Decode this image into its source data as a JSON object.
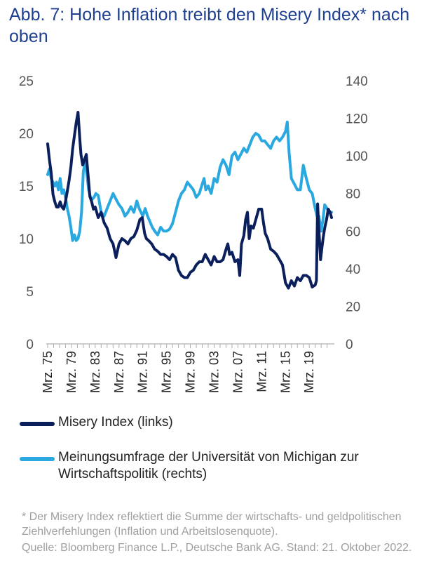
{
  "title": "Abb. 7: Hohe Inflation treibt den Misery Index* nach oben",
  "footnote": "* Der Misery Index reflektiert die Summe der wirtschafts- und geldpolitischen Ziehlverfehlungen (Inflation und Arbeitslosenquote).",
  "source": "Quelle: Bloomberg Finance L.P., Deutsche Bank AG. Stand: 21. Oktober 2022.",
  "colors": {
    "misery": "#0a1f5c",
    "michigan": "#2aa8e0"
  },
  "chart_data": {
    "type": "line",
    "title": "Abb. 7: Hohe Inflation treibt den Misery Index* nach oben",
    "xlim": [
      1975.0,
      2022.75
    ],
    "ylim_left": [
      0,
      25
    ],
    "ylim_right": [
      0,
      140
    ],
    "yticks_left": [
      "0",
      "5",
      "10",
      "15",
      "20",
      "25"
    ],
    "yticks_right": [
      "0",
      "20",
      "40",
      "60",
      "80",
      "100",
      "120",
      "140"
    ],
    "xticks": [
      {
        "x": 1975,
        "label": "Mrz. 75"
      },
      {
        "x": 1979,
        "label": "Mrz. 79"
      },
      {
        "x": 1983,
        "label": "Mrz. 83"
      },
      {
        "x": 1987,
        "label": "Mrz. 87"
      },
      {
        "x": 1991,
        "label": "Mrz. 91"
      },
      {
        "x": 1995,
        "label": "Mrz. 95"
      },
      {
        "x": 1999,
        "label": "Mrz. 99"
      },
      {
        "x": 2003,
        "label": "Mrz. 03"
      },
      {
        "x": 2007,
        "label": "Mrz. 07"
      },
      {
        "x": 2011,
        "label": "Mrz. 11"
      },
      {
        "x": 2015,
        "label": "Mrz. 15"
      },
      {
        "x": 2019,
        "label": "Mrz. 19"
      }
    ],
    "legend_position": "bottom",
    "grid": false,
    "series": [
      {
        "name": "Misery Index  (links)",
        "axis": "left",
        "x": [
          1975.0,
          1975.3,
          1975.6,
          1975.9,
          1976.2,
          1976.5,
          1976.8,
          1977.1,
          1977.4,
          1977.7,
          1978.0,
          1978.3,
          1978.6,
          1978.9,
          1979.2,
          1979.5,
          1979.8,
          1980.1,
          1980.4,
          1980.6,
          1980.9,
          1981.2,
          1981.5,
          1981.8,
          1982.1,
          1982.4,
          1982.7,
          1983.0,
          1983.5,
          1984.0,
          1984.5,
          1985.0,
          1985.5,
          1986.0,
          1986.5,
          1987.0,
          1987.5,
          1988.0,
          1988.5,
          1989.0,
          1989.5,
          1990.0,
          1990.5,
          1990.9,
          1991.3,
          1991.6,
          1992.0,
          1992.5,
          1993.0,
          1993.5,
          1994.0,
          1994.5,
          1995.0,
          1995.5,
          1996.0,
          1996.5,
          1997.0,
          1997.5,
          1998.0,
          1998.5,
          1999.0,
          1999.5,
          2000.0,
          2000.5,
          2001.0,
          2001.5,
          2002.0,
          2002.5,
          2003.0,
          2003.5,
          2004.0,
          2004.5,
          2005.0,
          2005.3,
          2005.6,
          2006.0,
          2006.5,
          2007.0,
          2007.3,
          2007.6,
          2008.0,
          2008.3,
          2008.6,
          2008.9,
          2009.2,
          2009.6,
          2010.0,
          2010.5,
          2011.0,
          2011.3,
          2011.6,
          2012.0,
          2012.5,
          2013.0,
          2013.5,
          2014.0,
          2014.5,
          2015.0,
          2015.5,
          2016.0,
          2016.5,
          2017.0,
          2017.5,
          2018.0,
          2018.5,
          2019.0,
          2019.5,
          2020.0,
          2020.2,
          2020.4,
          2020.6,
          2020.9,
          2021.2,
          2021.4,
          2021.6,
          2021.9,
          2022.2,
          2022.5,
          2022.75
        ],
        "values": [
          19.0,
          17.5,
          16.2,
          14.2,
          13.5,
          13.0,
          13.0,
          13.5,
          13.0,
          12.8,
          13.5,
          14.5,
          15.5,
          16.8,
          18.5,
          19.8,
          21.0,
          22.0,
          19.5,
          18.0,
          17.0,
          17.5,
          18.0,
          16.0,
          14.0,
          13.5,
          12.8,
          13.0,
          12.0,
          12.5,
          11.5,
          11.0,
          10.0,
          9.5,
          8.2,
          9.5,
          10.0,
          9.8,
          9.5,
          10.0,
          10.2,
          10.8,
          11.8,
          12.0,
          10.5,
          10.0,
          9.8,
          9.5,
          9.0,
          8.8,
          8.5,
          8.5,
          8.3,
          8.0,
          8.5,
          8.2,
          7.0,
          6.5,
          6.3,
          6.3,
          6.8,
          7.0,
          7.5,
          7.8,
          7.8,
          8.5,
          8.0,
          7.5,
          8.3,
          7.8,
          7.8,
          8.0,
          9.0,
          9.5,
          8.5,
          8.7,
          7.8,
          8.0,
          6.5,
          9.5,
          10.3,
          11.8,
          12.5,
          10.0,
          11.2,
          11.0,
          11.8,
          12.8,
          12.8,
          11.5,
          10.5,
          10.0,
          9.0,
          8.8,
          8.5,
          8.0,
          7.5,
          5.8,
          5.3,
          6.0,
          5.5,
          6.3,
          6.0,
          6.5,
          6.5,
          6.3,
          5.4,
          5.6,
          6.0,
          13.3,
          11.0,
          8.0,
          9.5,
          10.3,
          11.0,
          11.8,
          12.8,
          12.5,
          12.0
        ]
      },
      {
        "name": "Meinungsumfrage der Universität von Michigan zur Wirtschaftspolitik (rechts)",
        "axis": "right",
        "x": [
          1975.0,
          1975.3,
          1975.6,
          1975.9,
          1976.2,
          1976.5,
          1976.8,
          1977.1,
          1977.4,
          1977.7,
          1978.0,
          1978.3,
          1978.6,
          1978.9,
          1979.2,
          1979.5,
          1979.8,
          1980.1,
          1980.4,
          1980.7,
          1981.0,
          1981.3,
          1981.6,
          1981.9,
          1982.2,
          1982.5,
          1982.8,
          1983.1,
          1983.5,
          1984.0,
          1984.5,
          1985.0,
          1985.5,
          1986.0,
          1986.5,
          1987.0,
          1987.5,
          1988.0,
          1988.5,
          1989.0,
          1989.5,
          1990.0,
          1990.4,
          1990.7,
          1991.0,
          1991.4,
          1991.8,
          1992.2,
          1992.6,
          1993.0,
          1993.5,
          1994.0,
          1994.5,
          1995.0,
          1995.5,
          1996.0,
          1996.5,
          1997.0,
          1997.5,
          1998.0,
          1998.5,
          1999.0,
          1999.5,
          2000.0,
          2000.5,
          2001.0,
          2001.3,
          2001.6,
          2002.0,
          2002.5,
          2003.0,
          2003.5,
          2004.0,
          2004.5,
          2005.0,
          2005.5,
          2006.0,
          2006.5,
          2007.0,
          2007.5,
          2008.0,
          2008.5,
          2009.0,
          2009.5,
          2010.0,
          2010.5,
          2011.0,
          2011.5,
          2012.0,
          2012.5,
          2013.0,
          2013.5,
          2014.0,
          2014.5,
          2015.0,
          2015.3,
          2015.6,
          2016.0,
          2016.5,
          2017.0,
          2017.5,
          2018.0,
          2018.5,
          2019.0,
          2019.5,
          2020.0,
          2020.3,
          2020.6,
          2021.0,
          2021.3,
          2021.6,
          2022.0,
          2022.3,
          2022.6,
          2022.75
        ],
        "values": [
          90.0,
          93.0,
          88.0,
          86.0,
          84.0,
          86.0,
          82.0,
          88.0,
          80.0,
          82.0,
          78.0,
          72.0,
          68.0,
          62.0,
          55.0,
          58.0,
          55.0,
          56.0,
          60.0,
          70.0,
          92.0,
          96.0,
          90.0,
          82.0,
          78.0,
          77.0,
          78.0,
          80.0,
          79.0,
          70.0,
          68.0,
          72.0,
          76.0,
          80.0,
          77.0,
          74.0,
          72.0,
          68.0,
          70.0,
          73.0,
          70.0,
          76.0,
          72.0,
          70.0,
          68.0,
          72.0,
          68.0,
          65.0,
          62.0,
          60.0,
          58.0,
          62.0,
          60.0,
          60.0,
          61.0,
          64.0,
          70.0,
          76.0,
          80.0,
          82.0,
          86.0,
          84.0,
          82.0,
          78.0,
          80.0,
          85.0,
          88.0,
          82.0,
          84.0,
          80.0,
          88.0,
          86.0,
          94.0,
          98.0,
          95.0,
          90.0,
          100.0,
          102.0,
          98.0,
          101.0,
          104.0,
          102.0,
          106.0,
          110.0,
          112.0,
          111.0,
          108.0,
          108.0,
          106.0,
          104.0,
          108.0,
          110.0,
          108.0,
          110.0,
          113.0,
          118.0,
          102.0,
          88.0,
          85.0,
          82.0,
          82.0,
          95.0,
          88.0,
          82.0,
          80.0,
          72.0,
          68.0,
          68.0,
          60.0,
          66.0,
          74.0,
          72.0,
          70.0,
          70.0,
          70.0
        ]
      }
    ]
  }
}
